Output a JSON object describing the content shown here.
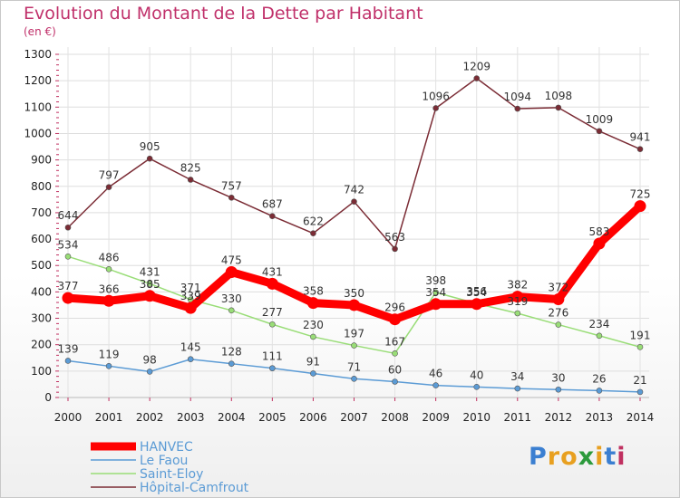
{
  "header": {
    "title": "Evolution du Montant de la Dette par Habitant",
    "subtitle": "(en €)"
  },
  "logo": {
    "letters": [
      "P",
      "r",
      "o",
      "x",
      "i",
      "t",
      "i"
    ],
    "colors": [
      "#3b7fd1",
      "#e8a020",
      "#e8a020",
      "#2c9a3c",
      "#e8a020",
      "#3b7fd1",
      "#c03060"
    ]
  },
  "chart_data": {
    "type": "line",
    "title": "Evolution du Montant de la Dette par Habitant",
    "subtitle": "(en €)",
    "x": [
      "2000",
      "2001",
      "2002",
      "2003",
      "2004",
      "2005",
      "2006",
      "2007",
      "2008",
      "2009",
      "2010",
      "2011",
      "2012",
      "2013",
      "2014"
    ],
    "ylim": [
      0,
      1300
    ],
    "yticks": [
      0,
      100,
      200,
      300,
      400,
      500,
      600,
      700,
      800,
      900,
      1000,
      1100,
      1200,
      1300
    ],
    "grid": true,
    "legend_position": "bottom-left",
    "series": [
      {
        "name": "HANVEC",
        "color": "#ff0000",
        "values": [
          377,
          366,
          385,
          339,
          475,
          431,
          358,
          350,
          296,
          354,
          354,
          382,
          372,
          583,
          725
        ],
        "labels": [
          "377",
          "366",
          "385",
          "339",
          "475",
          "431",
          "358",
          "350",
          "296",
          "354",
          "354",
          "382",
          "372",
          "583",
          "725"
        ]
      },
      {
        "name": "Le Faou",
        "color": "#5b9bd5",
        "values": [
          139,
          119,
          98,
          145,
          128,
          111,
          91,
          71,
          60,
          46,
          40,
          34,
          30,
          26,
          21
        ],
        "labels": [
          "139",
          "119",
          "98",
          "145",
          "128",
          "111",
          "91",
          "71",
          "60",
          "46",
          "40",
          "34",
          "30",
          "26",
          "21"
        ]
      },
      {
        "name": "Saint-Eloy",
        "color": "#99dd77",
        "values": [
          534,
          486,
          431,
          371,
          330,
          277,
          230,
          197,
          167,
          398,
          356,
          319,
          276,
          234,
          191
        ],
        "labels": [
          "534",
          "486",
          "431",
          "371",
          "330",
          "277",
          "230",
          "197",
          "167",
          "398",
          "356",
          "319",
          "276",
          "234",
          "191"
        ]
      },
      {
        "name": "Hôpital-Camfrout",
        "color": "#7b2c35",
        "values": [
          644,
          797,
          905,
          825,
          757,
          687,
          622,
          742,
          563,
          1096,
          1209,
          1094,
          1098,
          1009,
          941
        ],
        "labels": [
          "644",
          "797",
          "905",
          "825",
          "757",
          "687",
          "622",
          "742",
          "563",
          "1096",
          "1209",
          "1094",
          "1098",
          "1009",
          "941"
        ]
      }
    ]
  }
}
